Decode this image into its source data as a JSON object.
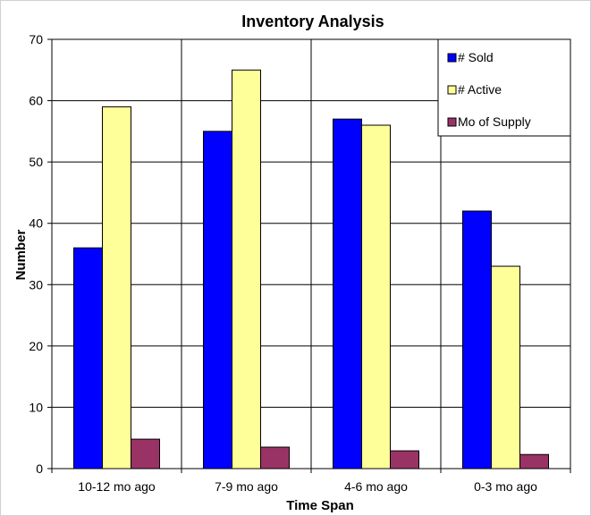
{
  "chart_data": {
    "type": "bar",
    "title": "Inventory Analysis",
    "xlabel": "Time Span",
    "ylabel": "Number",
    "categories": [
      "10-12 mo ago",
      "7-9 mo ago",
      "4-6 mo ago",
      "0-3 mo ago"
    ],
    "series": [
      {
        "name": "# Sold",
        "values": [
          36,
          55,
          57,
          42
        ],
        "color": "#0000ff"
      },
      {
        "name": "# Active",
        "values": [
          59,
          65,
          56,
          33
        ],
        "color": "#ffff99"
      },
      {
        "name": "Mo of Supply",
        "values": [
          4.8,
          3.5,
          2.9,
          2.3
        ],
        "color": "#993366"
      }
    ],
    "ylim": [
      0,
      70
    ],
    "yticks": [
      "0",
      "10",
      "20",
      "30",
      "40",
      "50",
      "60",
      "70"
    ],
    "grid": true,
    "legend_position": "top-right"
  }
}
